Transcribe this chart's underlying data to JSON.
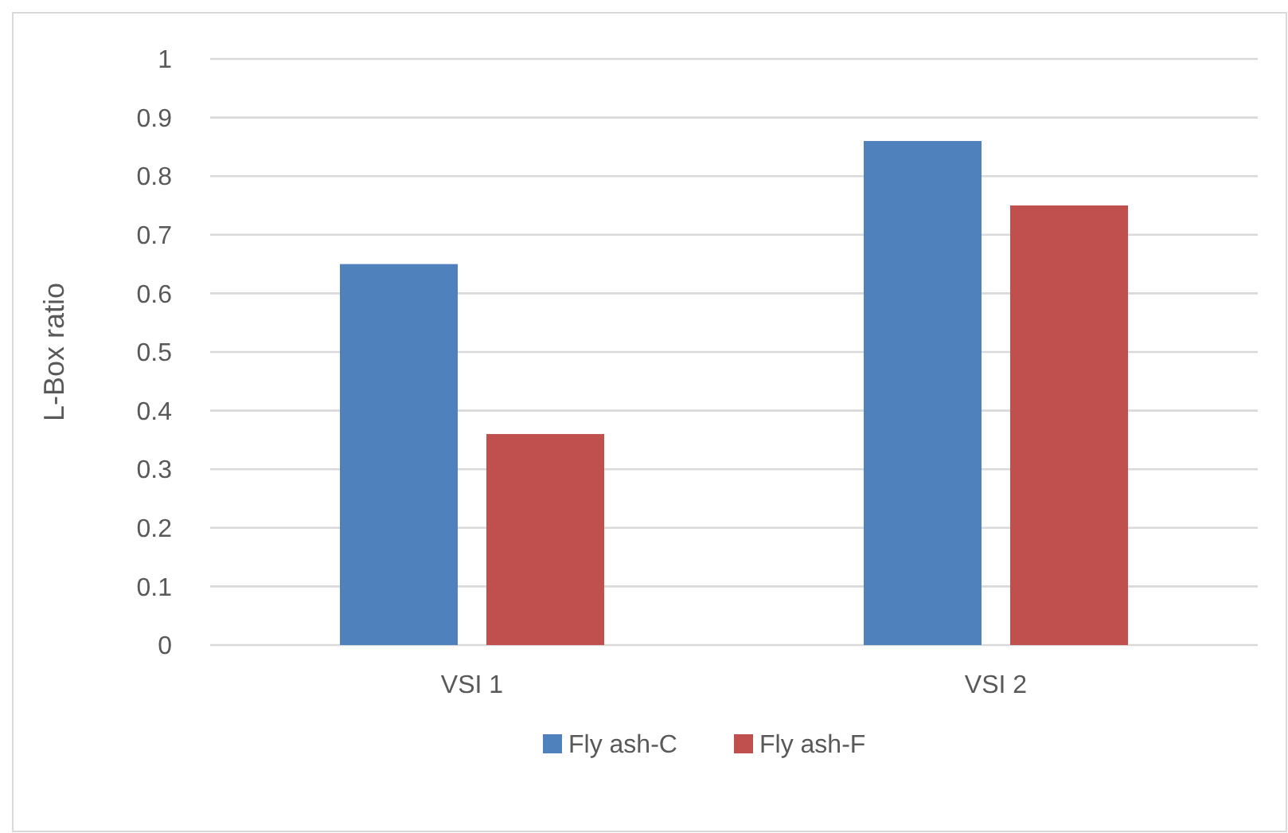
{
  "chart_data": {
    "type": "bar",
    "ylabel": "L-Box ratio",
    "categories": [
      "VSI 1",
      "VSI 2"
    ],
    "series": [
      {
        "name": "Fly ash-C",
        "color": "#4f81bd",
        "values": [
          0.65,
          0.86
        ]
      },
      {
        "name": "Fly ash-F",
        "color": "#c0504d",
        "values": [
          0.36,
          0.75
        ]
      }
    ],
    "ylim": [
      0,
      1
    ],
    "yticks": [
      0,
      0.1,
      0.2,
      0.3,
      0.4,
      0.5,
      0.6,
      0.7,
      0.8,
      0.9,
      1
    ],
    "grid": "y",
    "legend": "bottom"
  }
}
